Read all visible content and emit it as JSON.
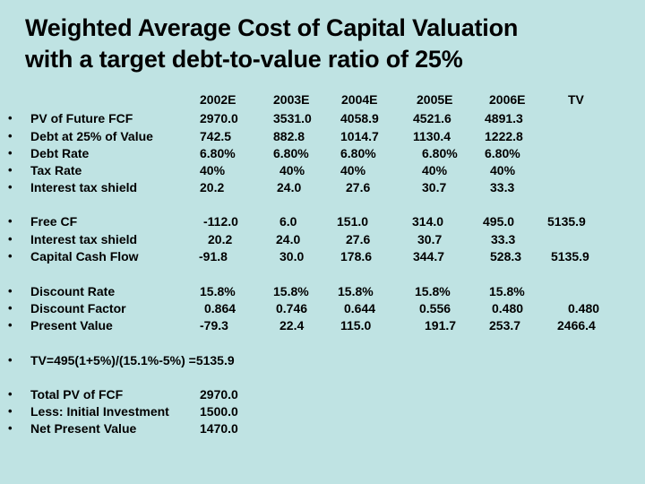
{
  "title_line1": "Weighted Average Cost of Capital Valuation",
  "title_line2": "with a target debt-to-value ratio of 25%",
  "bullet_char": "•",
  "headers": [
    "2002E",
    "2003E",
    "2004E",
    "2005E",
    "2006E",
    "TV"
  ],
  "rows": [
    {
      "label": "PV of Future FCF",
      "cells": [
        "2970.0",
        "3531.0",
        "4058.9",
        "4521.6",
        "4891.3"
      ]
    },
    {
      "label": "Debt at 25% of Value",
      "cells": [
        "742.5",
        "882.8",
        "1014.7",
        "1130.4",
        "1222.8"
      ]
    },
    {
      "label": "Debt Rate",
      "cells": [
        "6.80%",
        "6.80%",
        "6.80%",
        "6.80%",
        "6.80%"
      ]
    },
    {
      "label": "Tax Rate",
      "cells": [
        "40%",
        "40%",
        "40%",
        "40%",
        "40%"
      ]
    },
    {
      "label": "Interest tax shield",
      "cells": [
        "20.2",
        "24.0",
        "27.6",
        "30.7",
        "33.3"
      ]
    },
    {
      "label": "Free CF",
      "cells": [
        "-112.0",
        "6.0",
        "151.0",
        "314.0",
        "495.0",
        "5135.9"
      ]
    },
    {
      "label": "Interest tax shield",
      "cells": [
        "20.2",
        "24.0",
        "27.6",
        "30.7",
        "33.3"
      ]
    },
    {
      "label": "Capital Cash Flow",
      "cells": [
        "-91.8",
        "30.0",
        "178.6",
        "344.7",
        "528.3",
        "5135.9"
      ]
    },
    {
      "label": "Discount Rate",
      "cells": [
        "15.8%",
        "15.8%",
        "15.8%",
        "15.8%",
        "15.8%"
      ]
    },
    {
      "label": "Discount Factor",
      "cells": [
        "0.864",
        "0.746",
        "0.644",
        "0.556",
        "0.480",
        "0.480"
      ]
    },
    {
      "label": "Present Value",
      "cells": [
        "-79.3",
        "22.4",
        "115.0",
        "191.7",
        "253.7",
        "2466.4"
      ]
    },
    {
      "label": "TV=495(1+5%)/(15.1%-5%) =5135.9",
      "cells": []
    },
    {
      "label": "Total PV of FCF",
      "cells": [
        "2970.0"
      ]
    },
    {
      "label": "Less: Initial Investment",
      "cells": [
        "1500.0"
      ]
    },
    {
      "label": "Net Present Value",
      "cells": [
        "1470.0"
      ]
    }
  ]
}
